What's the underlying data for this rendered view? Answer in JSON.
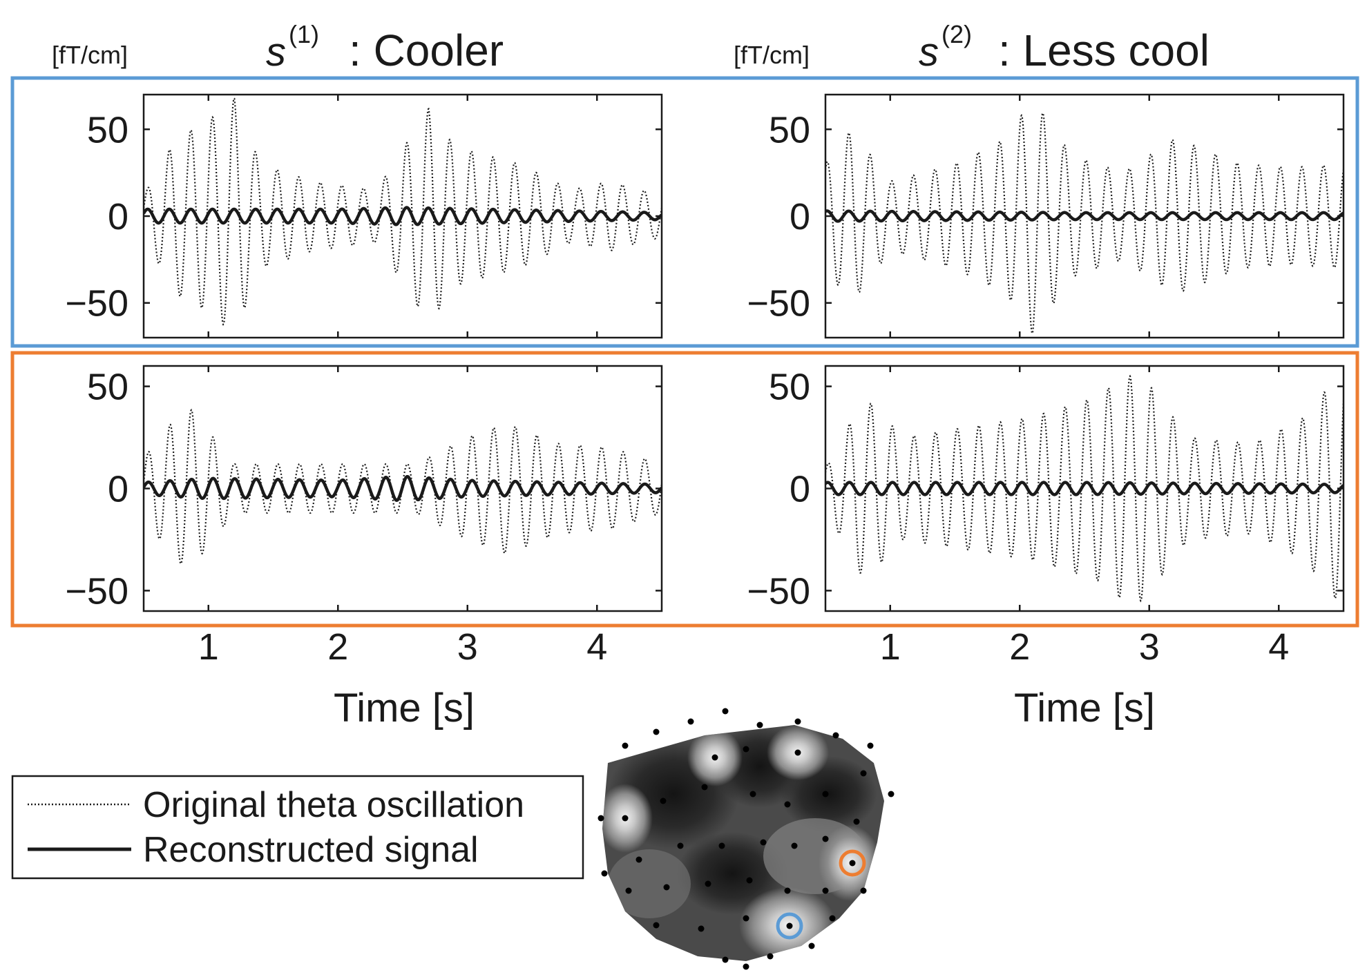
{
  "colors": {
    "row1_frame": "#5b9bd5",
    "row2_frame": "#ed7d31",
    "ink": "#1a1a1a",
    "topomap_dark": "#1e1e1e",
    "topomap_light": "#e0e0e0"
  },
  "titles": {
    "left_math": "s",
    "left_sup": "(1)",
    "left_text": ": Cooler",
    "right_math": "s",
    "right_sup": "(2)",
    "right_text": ": Less cool"
  },
  "units": {
    "left": "[fT/cm]",
    "right": "[fT/cm]"
  },
  "xlabels": {
    "left": "Time [s]",
    "right": "Time [s]"
  },
  "legend": {
    "original": "Original theta oscillation",
    "reconstructed": "Reconstructed signal"
  },
  "chart_data": [
    {
      "type": "line",
      "panel": "row1-left",
      "xlim": [
        0.5,
        4.5
      ],
      "ylim": [
        -70,
        70
      ],
      "xticks": [
        1,
        2,
        3,
        4
      ],
      "yticks": [
        -50,
        0,
        50
      ],
      "ytick_labels": [
        "−50",
        "0",
        "50"
      ],
      "series": [
        {
          "name": "Original theta oscillation",
          "style": "dotted",
          "freq_hz": 6,
          "phase": 0.4,
          "env_t": [
            0.5,
            0.75,
            1.0,
            1.2,
            1.4,
            1.8,
            2.3,
            2.7,
            2.9,
            3.4,
            3.8,
            4.1,
            4.5
          ],
          "env_a": [
            12,
            45,
            55,
            68,
            30,
            20,
            15,
            62,
            40,
            30,
            15,
            20,
            12
          ]
        },
        {
          "name": "Reconstructed signal",
          "style": "solid",
          "freq_hz": 6,
          "phase": 0.4,
          "env_t": [
            0.5,
            2.0,
            2.5,
            4.5
          ],
          "env_a": [
            4,
            4,
            5,
            2
          ]
        }
      ]
    },
    {
      "type": "line",
      "panel": "row1-right",
      "xlim": [
        0.5,
        4.5
      ],
      "ylim": [
        -70,
        70
      ],
      "xticks": [
        1,
        2,
        3,
        4
      ],
      "yticks": [
        -50,
        0,
        50
      ],
      "ytick_labels": [
        "−50",
        "0",
        "50"
      ],
      "series": [
        {
          "name": "Original theta oscillation",
          "style": "dotted",
          "freq_hz": 6,
          "phase": 1.1,
          "env_t": [
            0.5,
            0.7,
            1.0,
            1.5,
            1.9,
            2.1,
            2.4,
            2.8,
            3.2,
            3.7,
            4.1,
            4.5
          ],
          "env_a": [
            30,
            50,
            20,
            30,
            45,
            68,
            35,
            25,
            45,
            30,
            28,
            30
          ]
        },
        {
          "name": "Reconstructed signal",
          "style": "solid",
          "freq_hz": 6,
          "phase": 1.1,
          "env_t": [
            0.5,
            2.5,
            4.5
          ],
          "env_a": [
            3,
            2,
            2
          ]
        }
      ]
    },
    {
      "type": "line",
      "panel": "row2-left",
      "xlim": [
        0.5,
        4.5
      ],
      "ylim": [
        -60,
        60
      ],
      "xticks": [
        1,
        2,
        3,
        4
      ],
      "yticks": [
        -50,
        0,
        50
      ],
      "ytick_labels": [
        "−50",
        "0",
        "50"
      ],
      "series": [
        {
          "name": "Original theta oscillation",
          "style": "dotted",
          "freq_hz": 6,
          "phase": 0.2,
          "env_t": [
            0.5,
            0.75,
            0.85,
            1.2,
            2.0,
            2.6,
            3.0,
            3.3,
            3.7,
            4.1,
            4.5
          ],
          "env_a": [
            15,
            35,
            40,
            12,
            12,
            12,
            25,
            32,
            22,
            20,
            12
          ]
        },
        {
          "name": "Reconstructed signal",
          "style": "solid",
          "freq_hz": 6,
          "phase": 0.2,
          "env_t": [
            0.5,
            1.0,
            2.0,
            2.5,
            3.0,
            4.5
          ],
          "env_a": [
            3,
            5,
            4,
            6,
            4,
            2
          ]
        }
      ]
    },
    {
      "type": "line",
      "panel": "row2-right",
      "xlim": [
        0.5,
        4.5
      ],
      "ylim": [
        -60,
        60
      ],
      "xticks": [
        1,
        2,
        3,
        4
      ],
      "yticks": [
        -50,
        0,
        50
      ],
      "ytick_labels": [
        "−50",
        "0",
        "50"
      ],
      "series": [
        {
          "name": "Original theta oscillation",
          "style": "dotted",
          "freq_hz": 6,
          "phase": 0.9,
          "env_t": [
            0.5,
            0.8,
            1.1,
            1.6,
            2.1,
            2.6,
            2.8,
            2.95,
            3.3,
            3.8,
            4.2,
            4.45
          ],
          "env_a": [
            10,
            45,
            25,
            30,
            35,
            45,
            55,
            55,
            25,
            22,
            35,
            55
          ]
        },
        {
          "name": "Reconstructed signal",
          "style": "solid",
          "freq_hz": 6,
          "phase": 0.9,
          "env_t": [
            0.5,
            2.5,
            4.5
          ],
          "env_a": [
            3,
            3,
            2
          ]
        }
      ]
    }
  ]
}
